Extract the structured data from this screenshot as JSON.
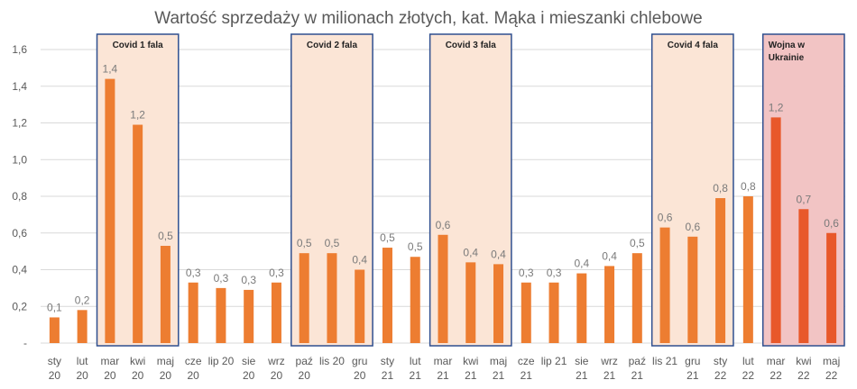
{
  "chart_data": {
    "type": "bar",
    "title": "Wartość sprzedaży w milionach złotych, kat. Mąka i mieszanki chlebowe",
    "xlabel": "",
    "ylabel": "",
    "ylim": [
      0,
      1.6
    ],
    "yticks": [
      "-",
      "0,2",
      "0,4",
      "0,6",
      "0,8",
      "1,0",
      "1,2",
      "1,4",
      "1,6"
    ],
    "grid": true,
    "colors": {
      "bar": "#ed7d31",
      "bar_dark": "#e8582a",
      "box_fill": "#fbe5d6",
      "box_stroke": "#2f4f8f",
      "war_fill": "#f2c4c4"
    },
    "categories": [
      [
        "sty",
        "20"
      ],
      [
        "lut",
        "20"
      ],
      [
        "mar",
        "20"
      ],
      [
        "kwi",
        "20"
      ],
      [
        "maj",
        "20"
      ],
      [
        "cze",
        "20"
      ],
      [
        "lip 20",
        ""
      ],
      [
        "sie",
        "20"
      ],
      [
        "wrz",
        "20"
      ],
      [
        "paź",
        "20"
      ],
      [
        "lis 20",
        ""
      ],
      [
        "gru",
        "20"
      ],
      [
        "sty",
        "21"
      ],
      [
        "lut",
        "21"
      ],
      [
        "mar",
        "21"
      ],
      [
        "kwi",
        "21"
      ],
      [
        "maj",
        "21"
      ],
      [
        "cze",
        "21"
      ],
      [
        "lip 21",
        ""
      ],
      [
        "sie",
        "21"
      ],
      [
        "wrz",
        "21"
      ],
      [
        "paź",
        "21"
      ],
      [
        "lis 21",
        ""
      ],
      [
        "gru",
        "21"
      ],
      [
        "sty",
        "22"
      ],
      [
        "lut",
        "22"
      ],
      [
        "mar",
        "22"
      ],
      [
        "kwi",
        "22"
      ],
      [
        "maj",
        "22"
      ]
    ],
    "values": [
      0.14,
      0.18,
      1.44,
      1.19,
      0.53,
      0.33,
      0.3,
      0.29,
      0.33,
      0.49,
      0.49,
      0.4,
      0.52,
      0.47,
      0.59,
      0.44,
      0.43,
      0.33,
      0.33,
      0.38,
      0.42,
      0.49,
      0.63,
      0.58,
      0.79,
      0.8,
      1.23,
      0.73,
      0.6
    ],
    "data_labels": [
      "0,1",
      "0,2",
      "1,4",
      "1,2",
      "0,5",
      "0,3",
      "0,3",
      "0,3",
      "0,3",
      "0,5",
      "0,5",
      "0,4",
      "0,5",
      "0,5",
      "0,6",
      "0,4",
      "0,4",
      "0,3",
      "0,3",
      "0,4",
      "0,4",
      "0,5",
      "0,6",
      "0,6",
      "0,8",
      "0,8",
      "1,2",
      "0,7",
      "0,6"
    ],
    "annotations": [
      {
        "label": "Covid 1 fala",
        "start": 2,
        "end": 4,
        "style": "covid"
      },
      {
        "label": "Covid 2 fala",
        "start": 9,
        "end": 11,
        "style": "covid"
      },
      {
        "label": "Covid 3 fala",
        "start": 14,
        "end": 16,
        "style": "covid"
      },
      {
        "label": "Covid 4 fala",
        "start": 22,
        "end": 24,
        "style": "covid"
      },
      {
        "label": "Wojna w Ukrainie",
        "lines": [
          "Wojna w",
          "Ukrainie"
        ],
        "start": 26,
        "end": 28,
        "style": "war"
      }
    ]
  }
}
